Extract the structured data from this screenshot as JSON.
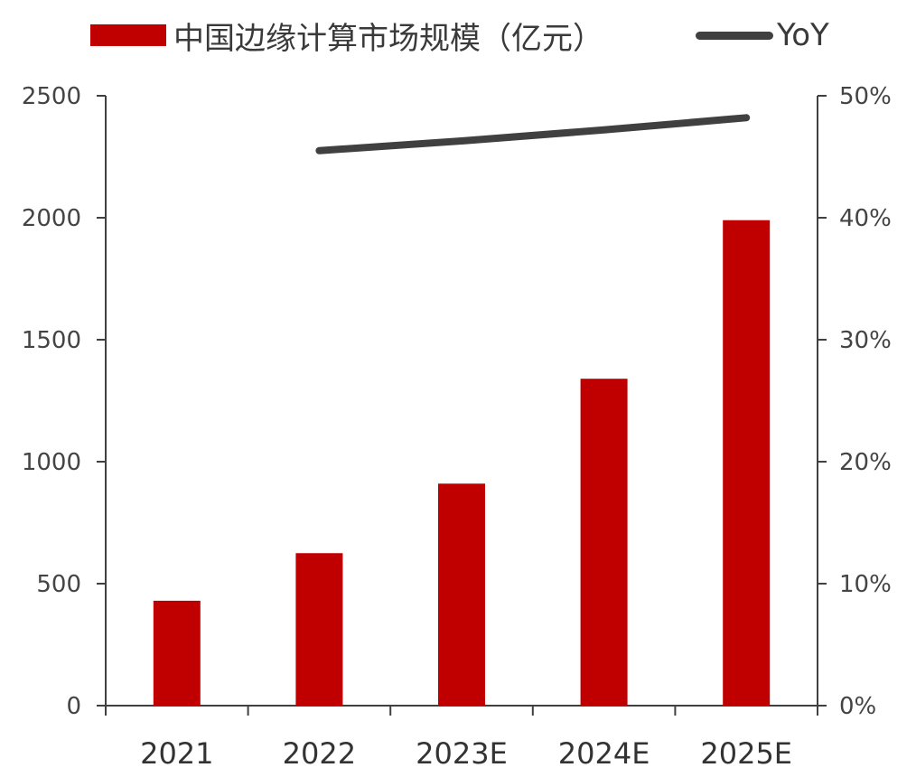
{
  "legend": {
    "bar_label": "中国边缘计算市场规模（亿元）",
    "line_label": "YoY"
  },
  "colors": {
    "bar": "#C00000",
    "line": "#404040",
    "axis": "#404040"
  },
  "chart_data": {
    "type": "bar",
    "categories": [
      "2021",
      "2022",
      "2023E",
      "2024E",
      "2025E"
    ],
    "series": [
      {
        "name": "中国边缘计算市场规模（亿元）",
        "type": "bar",
        "axis": "left",
        "values": [
          430,
          625,
          910,
          1340,
          1990
        ]
      },
      {
        "name": "YoY",
        "type": "line",
        "axis": "right",
        "values": [
          null,
          45.5,
          46.3,
          47.2,
          48.2
        ]
      }
    ],
    "y_left": {
      "lim": [
        0,
        2500
      ],
      "ticks": [
        "0",
        "500",
        "1000",
        "1500",
        "2000",
        "2500"
      ]
    },
    "y_right": {
      "lim": [
        0,
        50
      ],
      "ticks": [
        "0%",
        "10%",
        "20%",
        "30%",
        "40%",
        "50%"
      ]
    },
    "grid": false,
    "legend_position": "top"
  }
}
